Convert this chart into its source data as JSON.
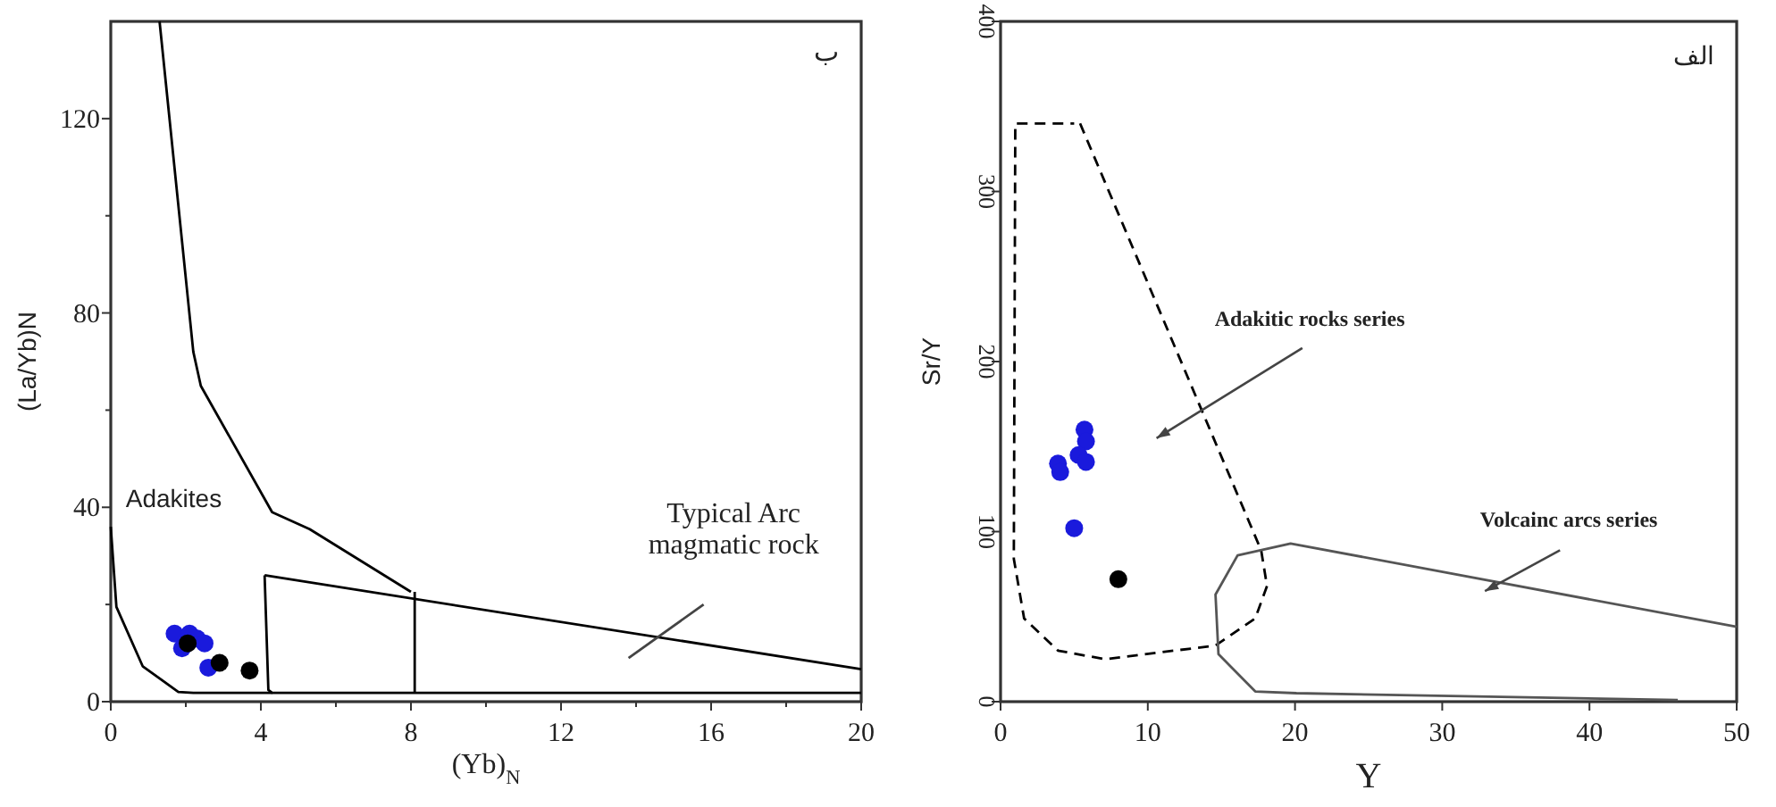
{
  "chart_data": [
    {
      "type": "scatter",
      "xlabel": "(Yb)$_{N}$",
      "ylabel": "(La/Yb)N",
      "xlim": [
        0,
        20
      ],
      "ylim": [
        0,
        140
      ],
      "xticks": [
        0,
        {
          "value": 2,
          "label": null
        },
        4,
        {
          "value": 6,
          "label": null
        },
        8,
        {
          "value": 10,
          "label": null
        },
        12,
        {
          "value": 14,
          "label": null
        },
        16,
        {
          "value": 18,
          "label": null
        },
        20
      ],
      "yticks": [
        0,
        {
          "value": 20,
          "label": null
        },
        40,
        {
          "value": 60,
          "label": null
        },
        80,
        {
          "value": 100,
          "label": null
        },
        120
      ],
      "annotations": [
        "ب",
        "Adakites",
        "Typical Arc\nmagmatic rock"
      ],
      "series": [
        {
          "type": "line",
          "color": "#000000",
          "line_style": "solid",
          "x": [
            1.3,
            2.2,
            2.4,
            4.3,
            5.3,
            8.0
          ],
          "values": [
            140,
            72,
            65,
            39,
            35.5,
            22.6
          ]
        },
        {
          "type": "line",
          "color": "#000000",
          "line_style": "solid",
          "x": [
            4.1,
            20
          ],
          "values": [
            26,
            6.7
          ]
        },
        {
          "type": "line",
          "color": "#000000",
          "line_style": "solid",
          "x": [
            4.1,
            4.2,
            4.3,
            20
          ],
          "values": [
            26,
            2.4,
            1.8,
            1.8
          ]
        },
        {
          "type": "line",
          "color": "#000000",
          "line_style": "solid",
          "x": [
            8.1,
            8.1
          ],
          "values": [
            22.6,
            1.8
          ]
        },
        {
          "type": "line",
          "color": "#444444",
          "line_style": "solid",
          "x": [
            13.8,
            15.8
          ],
          "values": [
            9,
            20
          ]
        },
        {
          "type": "line",
          "color": "#000000",
          "line_style": "solid",
          "x": [
            0,
            0.15,
            0.85,
            1.8,
            2.2,
            4.3
          ],
          "values": [
            36,
            19.5,
            7.3,
            2,
            1.8,
            1.8
          ]
        },
        {
          "type": "scatter",
          "color": "#1a1adc",
          "marker": "circle",
          "x": [
            1.7,
            1.9,
            2.1,
            2.3,
            2.5,
            2.6
          ],
          "values": [
            14,
            11,
            14,
            13,
            12,
            7
          ]
        },
        {
          "type": "scatter",
          "color": "#000000",
          "marker": "circle",
          "x": [
            2.05,
            2.9,
            3.7
          ],
          "values": [
            12,
            8,
            6.4
          ]
        }
      ]
    },
    {
      "type": "scatter",
      "xlabel": "Y",
      "ylabel": "Sr/Y",
      "xlim": [
        0,
        50
      ],
      "ylim": [
        0,
        400
      ],
      "xticks": [
        0,
        10,
        20,
        30,
        40,
        50
      ],
      "yticks": [
        0,
        100,
        200,
        300,
        400
      ],
      "annotations": [
        "الف",
        "Adakitic rocks series",
        "Volcainc arcs series"
      ],
      "series": [
        {
          "type": "line",
          "color": "#000000",
          "line_style": "dashed",
          "x": [
            5.4,
            17.7,
            18.1,
            17.3,
            14.6,
            7.1,
            3.9,
            1.6,
            0.9,
            1,
            5
          ],
          "values": [
            340,
            89,
            68,
            49,
            33,
            25,
            30,
            49,
            84,
            340,
            340
          ]
        },
        {
          "type": "line",
          "color": "#555555",
          "line_style": "solid",
          "x": [
            50,
            19.7,
            16.1,
            14.6,
            14.8,
            17.3,
            20.1,
            46
          ],
          "values": [
            44,
            93,
            86,
            63,
            28,
            6,
            5,
            1
          ]
        },
        {
          "type": "scatter",
          "color": "#1a1adc",
          "marker": "circle",
          "x": [
            3.9,
            4.05,
            5.0,
            5.7,
            5.8,
            5.3,
            5.8
          ],
          "values": [
            140,
            135,
            102,
            160,
            153,
            145,
            141
          ]
        },
        {
          "type": "scatter",
          "color": "#000000",
          "marker": "circle",
          "x": [
            8.0
          ],
          "values": [
            72
          ]
        }
      ]
    }
  ]
}
